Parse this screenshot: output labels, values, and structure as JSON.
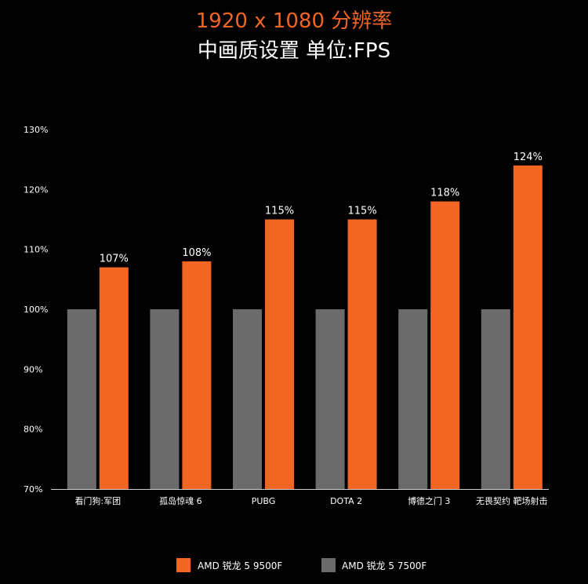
{
  "chart_data": {
    "type": "bar",
    "title": "1920 x 1080 分辨率",
    "subtitle": "中画质设置 单位:FPS",
    "categories": [
      "看门狗:军团",
      "孤岛惊魂 6",
      "PUBG",
      "DOTA 2",
      "博德之门 3",
      "无畏契约 靶场射击"
    ],
    "series": [
      {
        "name": "AMD 锐龙 5 7500F",
        "values": [
          100,
          100,
          100,
          100,
          100,
          100
        ],
        "color": "#6b6b6b"
      },
      {
        "name": "AMD 锐龙 5 9500F",
        "values": [
          107,
          108,
          115,
          115,
          118,
          124
        ],
        "color": "#f26522"
      }
    ],
    "data_labels": [
      "107%",
      "108%",
      "115%",
      "115%",
      "118%",
      "124%"
    ],
    "y_ticks": [
      "70%",
      "80%",
      "90%",
      "100%",
      "110%",
      "120%",
      "130%"
    ],
    "ylim": [
      70,
      130
    ],
    "grid": false,
    "legend": {
      "placement": "bottom",
      "order": [
        "AMD 锐龙 5 9500F",
        "AMD 锐龙 5 7500F"
      ]
    },
    "colors": {
      "background": "#000000",
      "accent": "#f26522",
      "baseline": "#6b6b6b",
      "text": "#ffffff"
    }
  }
}
